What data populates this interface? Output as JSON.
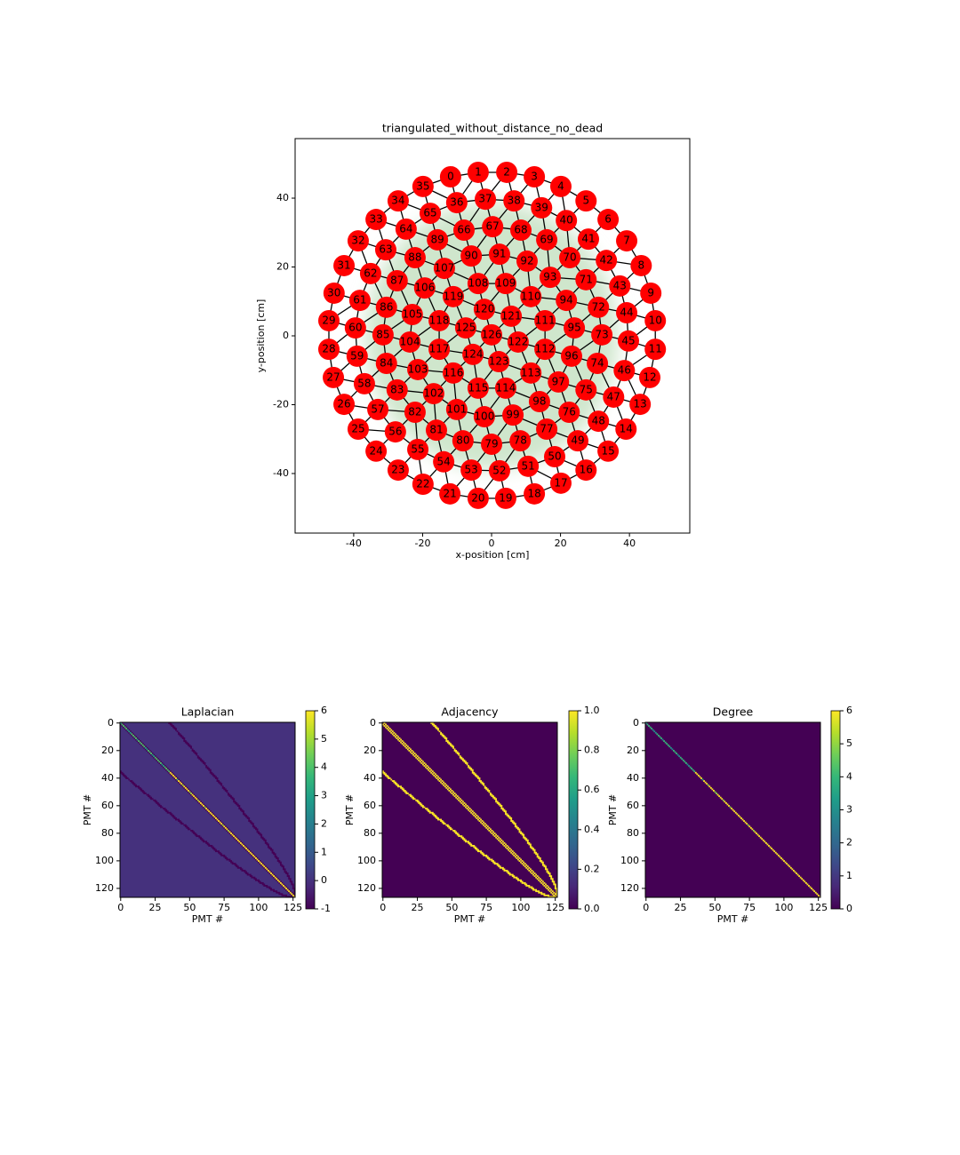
{
  "chart_data": [
    {
      "type": "scatter",
      "title": "triangulated_without_distance_no_dead",
      "xlabel": "x-position [cm]",
      "ylabel": "y-position [cm]",
      "color": "#ff0000",
      "x": [
        -11.9,
        -3.9,
        4.4,
        12.4,
        20.1,
        27.4,
        33.8,
        39.2,
        43.4,
        46.2,
        47.5,
        47.5,
        45.9,
        43.1,
        39.0,
        33.8,
        27.4,
        20.1,
        12.4,
        4.1,
        -3.9,
        -12.1,
        -19.9,
        -27.1,
        -33.5,
        -38.7,
        -42.8,
        -45.9,
        -47.2,
        -47.2,
        -45.7,
        -42.8,
        -38.7,
        -33.5,
        -27.1,
        -19.9,
        -10.1,
        -1.8,
        6.5,
        14.5,
        21.7,
        28.1,
        33.3,
        37.2,
        39.2,
        39.7,
        38.5,
        35.4,
        31.0,
        25.0,
        18.3,
        10.6,
        2.3,
        -5.9,
        -13.9,
        -21.4,
        -27.9,
        -33.0,
        -36.9,
        -39.0,
        -39.5,
        -38.2,
        -35.1,
        -30.7,
        -24.8,
        -17.8,
        -8.0,
        0.3,
        8.5,
        16.0,
        22.7,
        27.4,
        31.0,
        32.0,
        30.7,
        27.4,
        22.5,
        16.0,
        8.3,
        0.0,
        -8.3,
        -16.0,
        -22.2,
        -27.4,
        -30.5,
        -31.5,
        -30.5,
        -27.4,
        -22.2,
        -15.7,
        -5.9,
        2.3,
        10.3,
        17.0,
        21.7,
        24.0,
        23.2,
        19.4,
        13.9,
        6.2,
        -2.1,
        -10.1,
        -16.8,
        -21.4,
        -23.7,
        -23.0,
        -19.4,
        -13.7,
        -3.9,
        4.1,
        11.4,
        15.5,
        15.5,
        11.4,
        4.1,
        -3.9,
        -11.1,
        -15.2,
        -15.2,
        -11.1,
        -2.1,
        5.7,
        7.7,
        2.1,
        -5.4,
        -7.5,
        0.0
      ],
      "y": [
        46.2,
        47.5,
        47.5,
        46.2,
        43.4,
        39.2,
        33.8,
        27.6,
        20.4,
        12.4,
        4.4,
        -3.9,
        -12.1,
        -19.9,
        -27.1,
        -33.5,
        -39.0,
        -42.8,
        -45.9,
        -47.2,
        -47.2,
        -45.9,
        -43.1,
        -39.0,
        -33.5,
        -27.1,
        -19.9,
        -12.1,
        -3.9,
        4.4,
        12.4,
        20.4,
        27.6,
        33.8,
        39.2,
        43.4,
        38.7,
        39.7,
        39.2,
        37.2,
        33.5,
        28.1,
        21.9,
        14.5,
        6.7,
        -1.5,
        -10.1,
        -17.8,
        -24.8,
        -30.5,
        -35.1,
        -37.9,
        -39.2,
        -39.0,
        -36.6,
        -33.0,
        -27.9,
        -21.4,
        -13.9,
        -5.9,
        2.3,
        10.3,
        18.1,
        25.0,
        31.0,
        35.6,
        30.7,
        31.7,
        30.7,
        27.9,
        22.7,
        16.3,
        8.3,
        0.3,
        -8.0,
        -15.7,
        -22.2,
        -27.1,
        -30.5,
        -31.5,
        -30.5,
        -27.4,
        -22.2,
        -15.7,
        -8.0,
        0.3,
        8.3,
        16.0,
        22.7,
        27.9,
        23.2,
        23.7,
        21.7,
        17.0,
        10.3,
        2.3,
        -5.9,
        -13.4,
        -19.1,
        -23.0,
        -23.5,
        -21.4,
        -16.8,
        -9.8,
        -1.8,
        6.2,
        13.9,
        19.6,
        15.2,
        15.2,
        11.4,
        4.4,
        -3.9,
        -10.8,
        -15.2,
        -15.2,
        -10.8,
        -3.9,
        4.4,
        11.4,
        7.7,
        5.7,
        -1.8,
        -7.5,
        -5.4,
        2.3,
        0.3
      ],
      "labels": [
        0,
        1,
        2,
        3,
        4,
        5,
        6,
        7,
        8,
        9,
        10,
        11,
        12,
        13,
        14,
        15,
        16,
        17,
        18,
        19,
        20,
        21,
        22,
        23,
        24,
        25,
        26,
        27,
        28,
        29,
        30,
        31,
        32,
        33,
        34,
        35,
        36,
        37,
        38,
        39,
        40,
        41,
        42,
        43,
        44,
        45,
        46,
        47,
        48,
        49,
        50,
        51,
        52,
        53,
        54,
        55,
        56,
        57,
        58,
        59,
        60,
        61,
        62,
        63,
        64,
        65,
        66,
        67,
        68,
        69,
        70,
        71,
        72,
        73,
        74,
        75,
        76,
        77,
        78,
        79,
        80,
        81,
        82,
        83,
        84,
        85,
        86,
        87,
        88,
        89,
        90,
        91,
        92,
        93,
        94,
        95,
        96,
        97,
        98,
        99,
        100,
        101,
        102,
        103,
        104,
        105,
        106,
        107,
        108,
        109,
        110,
        111,
        112,
        113,
        114,
        115,
        116,
        117,
        118,
        119,
        120,
        121,
        122,
        123,
        124,
        125,
        126
      ],
      "xlim": [
        -57,
        57.5
      ],
      "ylim": [
        -57.3,
        57.3
      ],
      "xticks": [
        -40,
        -20,
        0,
        20,
        40
      ],
      "yticks": [
        -40,
        -20,
        0,
        20,
        40
      ]
    },
    {
      "type": "heatmap",
      "matrix": "laplacian",
      "title": "Laplacian",
      "xlabel": "PMT #",
      "ylabel": "PMT #",
      "colormap": "viridis",
      "xlim": [
        -0.5,
        126.5
      ],
      "ylim": [
        126.5,
        -0.5
      ],
      "xticks": [
        0,
        25,
        50,
        75,
        100,
        125
      ],
      "yticks": [
        0,
        20,
        40,
        60,
        80,
        100,
        120
      ],
      "clim": [
        -1,
        6
      ],
      "cticks": [
        -1,
        0,
        1,
        2,
        3,
        4,
        5,
        6
      ]
    },
    {
      "type": "heatmap",
      "matrix": "adjacency",
      "title": "Adjacency",
      "xlabel": "PMT #",
      "ylabel": "PMT #",
      "colormap": "viridis",
      "xlim": [
        -0.5,
        126.5
      ],
      "ylim": [
        126.5,
        -0.5
      ],
      "xticks": [
        0,
        25,
        50,
        75,
        100,
        125
      ],
      "yticks": [
        0,
        20,
        40,
        60,
        80,
        100,
        120
      ],
      "clim": [
        0,
        1
      ],
      "cticks": [
        {
          "value": 0,
          "label": "0.0"
        },
        0.2,
        0.4,
        0.6,
        0.8,
        {
          "value": 1,
          "label": "1.0"
        }
      ]
    },
    {
      "type": "heatmap",
      "matrix": "degree",
      "title": "Degree",
      "xlabel": "PMT #",
      "ylabel": "PMT #",
      "colormap": "viridis",
      "xlim": [
        -0.5,
        126.5
      ],
      "ylim": [
        126.5,
        -0.5
      ],
      "xticks": [
        0,
        25,
        50,
        75,
        100,
        125
      ],
      "yticks": [
        0,
        20,
        40,
        60,
        80,
        100,
        120
      ],
      "clim": [
        0,
        6
      ],
      "cticks": [
        0,
        1,
        2,
        3,
        4,
        5,
        6
      ]
    }
  ]
}
